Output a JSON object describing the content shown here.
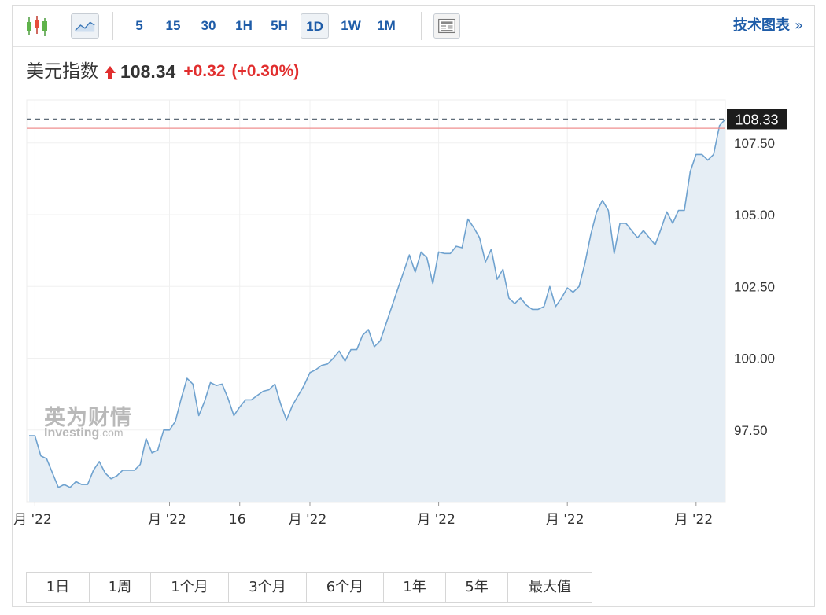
{
  "toolbar": {
    "intervals": [
      "5",
      "15",
      "30",
      "1H",
      "5H",
      "1D",
      "1W",
      "1M"
    ],
    "active_interval": "1D",
    "tech_chart_label": "技术图表",
    "tech_chevron": "»"
  },
  "quote": {
    "name": "美元指数",
    "price": "108.34",
    "change": "+0.32",
    "change_pct": "(+0.30%)"
  },
  "watermark": {
    "cn": "英为财情",
    "en_main": "Investing",
    "en_suffix": ".com"
  },
  "ranges": [
    "1日",
    "1周",
    "1个月",
    "3个月",
    "6个月",
    "1年",
    "5年",
    "最大值"
  ],
  "colors": {
    "up": "#e12e2e",
    "line": "#6fa2cf",
    "fill": "#e6eef5",
    "accent": "#1e5ca8"
  },
  "chart_data": {
    "type": "area",
    "y_ticks": [
      "97.50",
      "100.00",
      "102.50",
      "105.00",
      "107.50"
    ],
    "y_tick_values": [
      97.5,
      100,
      102.5,
      105,
      107.5
    ],
    "ylim": [
      95.0,
      109.0
    ],
    "x_tick_labels": [
      "月 '22",
      "月 '22",
      "16",
      "月 '22",
      "月 '22",
      "月 '22",
      "月 '22"
    ],
    "x_tick_index": [
      1,
      24,
      36,
      48,
      70,
      92,
      114
    ],
    "last_price_label": "108.33",
    "last_price": 108.33,
    "prev_close": 108.01,
    "grid": true,
    "values": [
      97.3,
      97.3,
      96.6,
      96.5,
      96.0,
      95.5,
      95.6,
      95.5,
      95.7,
      95.6,
      95.6,
      96.1,
      96.4,
      96.0,
      95.8,
      95.9,
      96.1,
      96.1,
      96.1,
      96.3,
      97.2,
      96.7,
      96.8,
      97.5,
      97.5,
      97.8,
      98.6,
      99.3,
      99.1,
      98.0,
      98.5,
      99.15,
      99.05,
      99.1,
      98.6,
      98.0,
      98.3,
      98.55,
      98.55,
      98.7,
      98.85,
      98.9,
      99.1,
      98.4,
      97.85,
      98.35,
      98.7,
      99.05,
      99.5,
      99.6,
      99.75,
      99.8,
      100.0,
      100.25,
      99.9,
      100.3,
      100.3,
      100.8,
      101.0,
      100.4,
      100.6,
      101.2,
      101.8,
      102.4,
      103.0,
      103.6,
      103.0,
      103.7,
      103.5,
      102.6,
      103.7,
      103.65,
      103.65,
      103.9,
      103.85,
      104.85,
      104.55,
      104.2,
      103.35,
      103.8,
      102.75,
      103.1,
      102.1,
      101.9,
      102.1,
      101.85,
      101.7,
      101.7,
      101.8,
      102.5,
      101.8,
      102.1,
      102.45,
      102.3,
      102.5,
      103.3,
      104.3,
      105.1,
      105.5,
      105.15,
      103.65,
      104.7,
      104.7,
      104.45,
      104.2,
      104.45,
      104.2,
      103.95,
      104.5,
      105.1,
      104.7,
      105.15,
      105.15,
      106.5,
      107.1,
      107.1,
      106.9,
      107.1,
      108.1,
      108.33
    ]
  }
}
